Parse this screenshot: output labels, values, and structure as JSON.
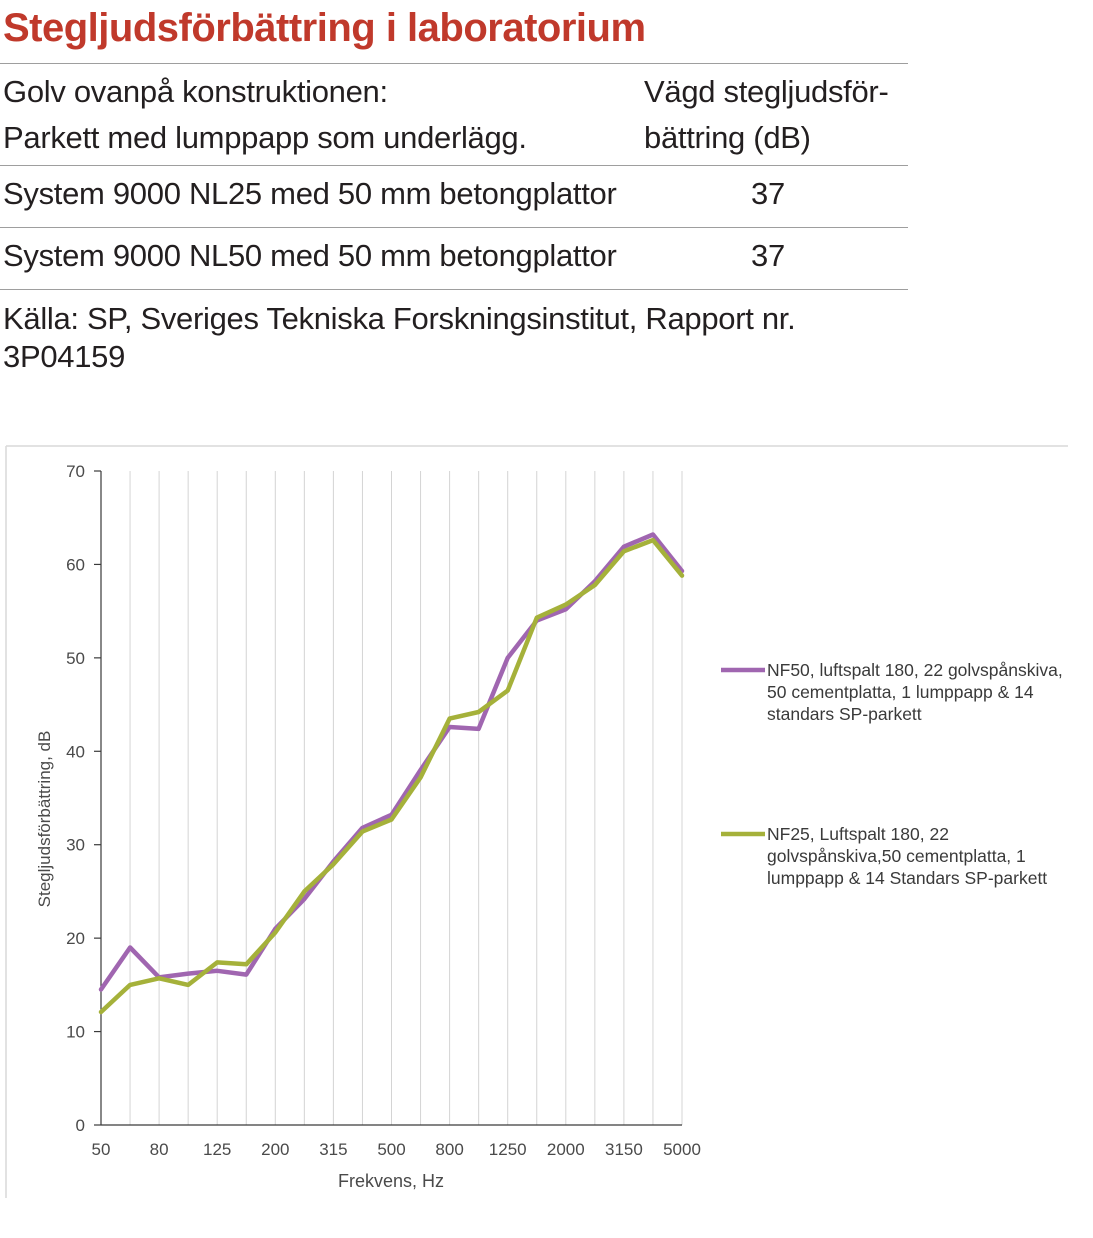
{
  "table": {
    "title": "Stegljudsförbättring i laboratorium",
    "header_left_line1": "Golv ovanpå konstruktionen:",
    "header_left_line2": "Parkett med lumppapp som underlägg.",
    "header_right_line1": "Vägd stegljudsför-",
    "header_right_line2": "bättring (dB)",
    "rows": [
      {
        "system": "System 9000 NL25 med 50 mm betongplattor",
        "value": "37"
      },
      {
        "system": "System 9000 NL50 med 50 mm betongplattor",
        "value": "37"
      }
    ],
    "source_line1": "Källa: SP, Sveriges Tekniska Forskningsinstitut, Rapport nr.",
    "source_line2": "3P04159"
  },
  "chart_data": {
    "type": "line",
    "x": [
      "50",
      "63",
      "80",
      "100",
      "125",
      "160",
      "200",
      "250",
      "315",
      "400",
      "500",
      "630",
      "800",
      "1000",
      "1250",
      "1600",
      "2000",
      "2500",
      "3150",
      "4000",
      "5000"
    ],
    "x_tick_labels": [
      "50",
      "80",
      "125",
      "200",
      "315",
      "500",
      "800",
      "1250",
      "2000",
      "3150",
      "5000"
    ],
    "xlabel": "Frekvens, Hz",
    "ylabel": "Stegljudsförbättring,  dB",
    "ylim": [
      0,
      70
    ],
    "y_ticks": [
      0,
      10,
      20,
      30,
      40,
      50,
      60,
      70
    ],
    "grid": "vertical",
    "legend_position": "right",
    "series": [
      {
        "name": "NF50, luftspalt 180, 22 golvspånskiva, 50 cementplatta, 1 lumppapp & 14 standars SP-parkett",
        "legend_lines": [
          "NF50, luftspalt 180, 22 golvspånskiva,",
          "50 cementplatta, 1 lumppapp & 14",
          "standars SP-parkett"
        ],
        "color": "#a066b0",
        "values": [
          14.5,
          19,
          15.8,
          16.2,
          16.5,
          16.1,
          21,
          24.2,
          28.2,
          31.8,
          33.2,
          38,
          42.6,
          42.4,
          50,
          54,
          55.2,
          58.2,
          61.9,
          63.2,
          59.3
        ]
      },
      {
        "name": "NF25, Luftspalt 180, 22 golvspånskiva,50 cementplatta, 1 lumppapp & 14 Standars SP-parkett",
        "legend_lines": [
          "NF25, Luftspalt 180, 22",
          "golvspånskiva,50 cementplatta, 1",
          "lumppapp & 14 Standars SP-parkett"
        ],
        "color": "#a5b13a",
        "values": [
          12.1,
          15,
          15.7,
          15,
          17.4,
          17.2,
          20.6,
          25,
          27.9,
          31.4,
          32.7,
          37.2,
          43.5,
          44.2,
          46.5,
          54.3,
          55.7,
          57.8,
          61.4,
          62.6,
          58.8
        ]
      }
    ]
  }
}
